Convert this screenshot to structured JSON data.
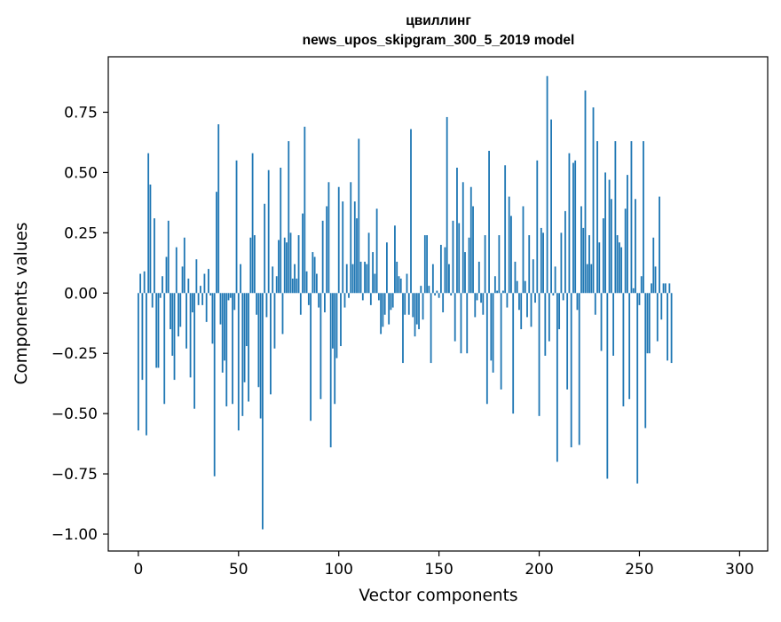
{
  "chart_data": {
    "type": "bar",
    "title": "цвиллинг",
    "subtitle": "news_upos_skipgram_300_5_2019 model",
    "xlabel": "Vector components",
    "ylabel": "Components values",
    "xlim": [
      -15,
      314
    ],
    "ylim": [
      -1.07,
      0.98
    ],
    "x_ticks": [
      0,
      50,
      100,
      150,
      200,
      250,
      300
    ],
    "x_tick_labels": [
      "0",
      "50",
      "100",
      "150",
      "200",
      "250",
      "300"
    ],
    "y_ticks": [
      0.75,
      0.5,
      0.25,
      0.0,
      -0.25,
      -0.5,
      -0.75,
      -1.0
    ],
    "y_tick_labels": [
      "0.75",
      "0.50",
      "0.25",
      "0.00",
      "−0.25",
      "−0.50",
      "−0.75",
      "−1.00"
    ],
    "bar_color": "#1f77b4",
    "grid": false,
    "series": [
      {
        "name": "цвиллинг",
        "x_start": 0,
        "values": [
          -0.57,
          0.08,
          -0.36,
          0.09,
          -0.59,
          0.58,
          0.45,
          -0.06,
          0.31,
          -0.31,
          -0.31,
          -0.02,
          0.07,
          -0.46,
          0.15,
          0.3,
          -0.15,
          -0.26,
          -0.36,
          0.19,
          -0.18,
          -0.14,
          0.11,
          0.23,
          -0.23,
          0.06,
          -0.35,
          -0.08,
          -0.48,
          0.14,
          -0.05,
          0.03,
          -0.05,
          0.08,
          -0.12,
          0.1,
          -0.01,
          -0.21,
          -0.76,
          0.42,
          0.7,
          -0.13,
          -0.33,
          -0.28,
          -0.47,
          -0.03,
          -0.02,
          -0.46,
          -0.07,
          0.55,
          -0.57,
          0.12,
          -0.51,
          -0.37,
          -0.22,
          -0.45,
          0.23,
          0.58,
          0.24,
          -0.09,
          -0.39,
          -0.52,
          -0.98,
          0.37,
          -0.1,
          0.51,
          -0.42,
          0.11,
          -0.23,
          0.07,
          0.22,
          0.52,
          -0.17,
          0.23,
          0.21,
          0.63,
          0.25,
          0.06,
          0.12,
          0.06,
          0.24,
          -0.09,
          0.33,
          0.69,
          0.09,
          -0.05,
          -0.53,
          0.17,
          0.15,
          0.08,
          -0.06,
          -0.44,
          0.3,
          -0.08,
          0.36,
          0.46,
          -0.64,
          -0.23,
          -0.46,
          -0.27,
          0.44,
          -0.22,
          0.38,
          -0.06,
          0.12,
          -0.02,
          0.46,
          0.12,
          0.38,
          0.31,
          0.64,
          0.13,
          -0.03,
          0.13,
          0.12,
          0.25,
          -0.05,
          0.17,
          0.08,
          0.35,
          -0.03,
          -0.17,
          -0.14,
          -0.09,
          0.21,
          -0.13,
          -0.07,
          -0.06,
          0.28,
          0.13,
          0.07,
          0.06,
          -0.29,
          -0.09,
          0.08,
          -0.09,
          0.68,
          -0.1,
          -0.18,
          -0.13,
          -0.15,
          0.03,
          -0.11,
          0.24,
          0.24,
          0.03,
          -0.29,
          0.12,
          -0.01,
          0.01,
          -0.02,
          0.2,
          -0.08,
          0.19,
          0.73,
          0.12,
          -0.01,
          0.3,
          -0.2,
          0.52,
          0.29,
          -0.25,
          0.46,
          0.17,
          -0.25,
          0.23,
          0.44,
          0.36,
          -0.1,
          -0.03,
          0.13,
          -0.04,
          -0.09,
          0.24,
          -0.46,
          0.59,
          -0.28,
          -0.33,
          0.07,
          0.01,
          0.24,
          -0.4,
          0.01,
          0.53,
          -0.06,
          0.4,
          0.32,
          -0.5,
          0.13,
          0.05,
          -0.07,
          -0.15,
          0.36,
          0.05,
          -0.1,
          0.24,
          -0.14,
          0.14,
          -0.04,
          0.55,
          -0.51,
          0.27,
          0.25,
          -0.26,
          0.9,
          -0.2,
          0.72,
          -0.01,
          0.11,
          -0.7,
          -0.15,
          0.25,
          -0.03,
          0.34,
          -0.4,
          0.58,
          -0.64,
          0.54,
          0.55,
          -0.07,
          -0.63,
          0.36,
          0.27,
          0.84,
          0.12,
          0.24,
          0.12,
          0.77,
          -0.09,
          0.63,
          0.21,
          -0.24,
          0.31,
          0.5,
          -0.77,
          0.47,
          0.39,
          -0.26,
          0.63,
          0.24,
          0.21,
          0.19,
          -0.47,
          0.35,
          0.49,
          -0.44,
          0.63,
          0.02,
          0.39,
          -0.79,
          -0.05,
          0.07,
          0.63,
          -0.56,
          -0.25,
          -0.25,
          0.04,
          0.23,
          0.11,
          -0.2,
          0.4,
          -0.11,
          0.04,
          0.04,
          -0.28,
          0.04,
          -0.29
        ]
      }
    ]
  }
}
